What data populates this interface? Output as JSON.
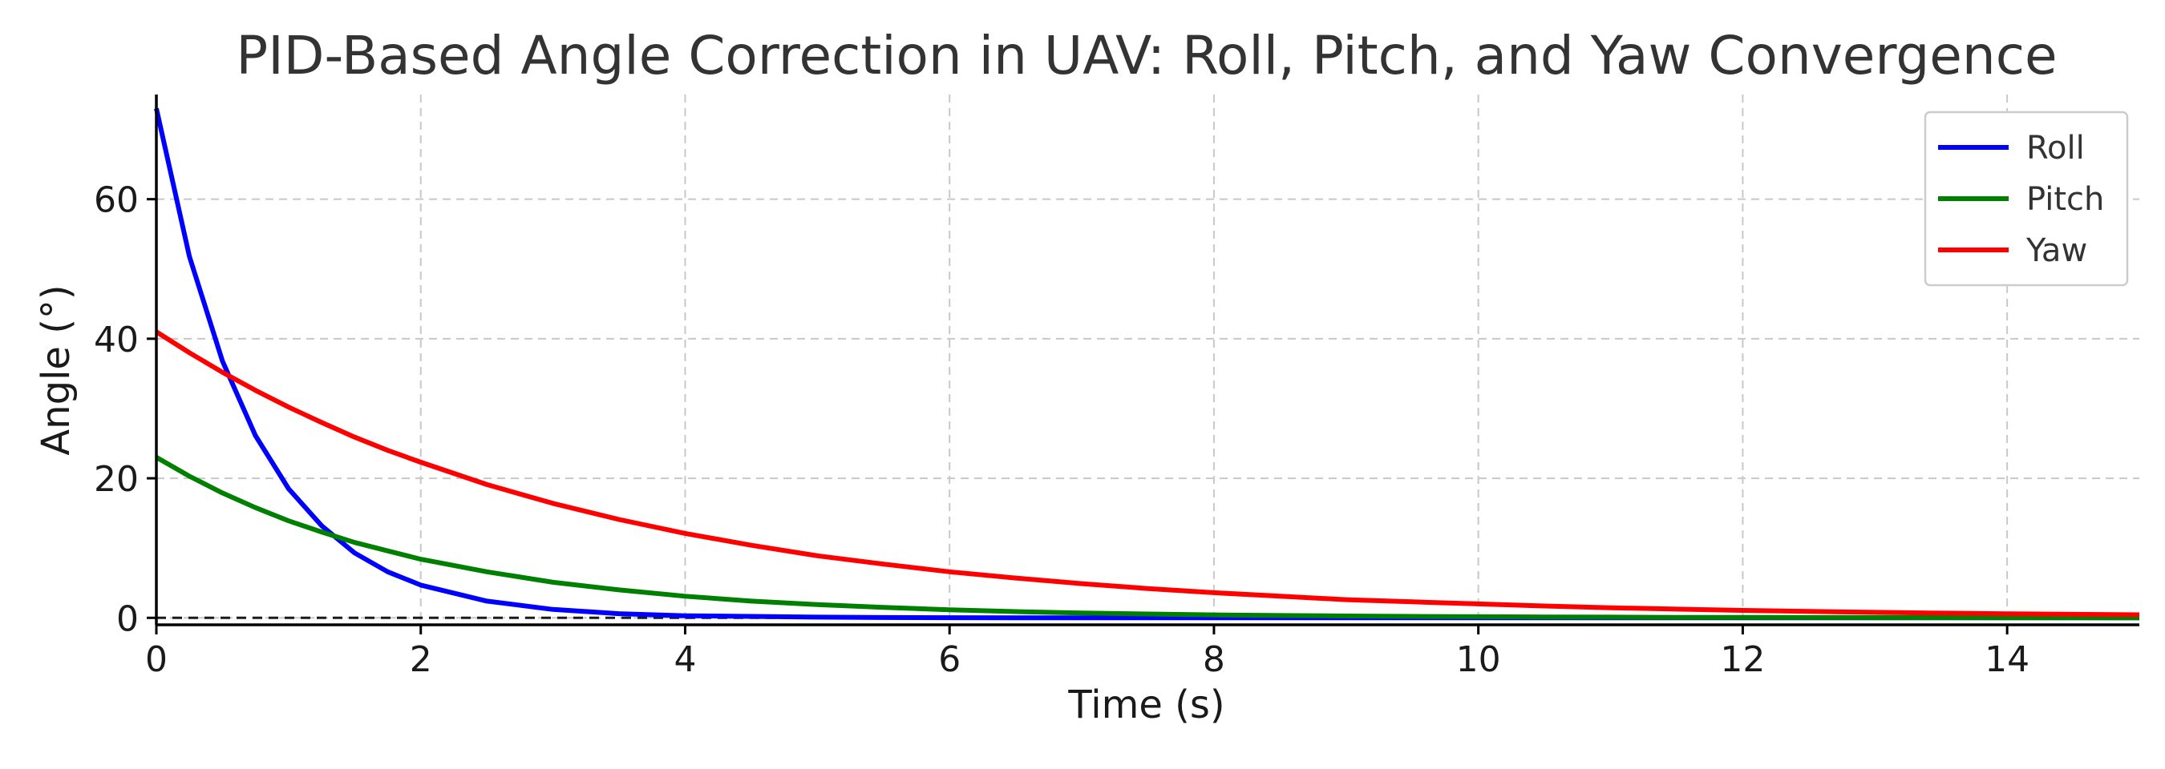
{
  "chart_data": {
    "type": "line",
    "title": "PID-Based Angle Correction in UAV: Roll, Pitch, and Yaw Convergence",
    "xlabel": "Time (s)",
    "ylabel": "Angle (°)",
    "xlim": [
      0,
      15
    ],
    "ylim": [
      -1,
      75
    ],
    "x_ticks": [
      0,
      2,
      4,
      6,
      8,
      10,
      12,
      14
    ],
    "y_ticks": [
      0,
      20,
      40,
      60
    ],
    "x_tick_labels": [
      "0",
      "2",
      "4",
      "6",
      "8",
      "10",
      "12",
      "14"
    ],
    "y_tick_labels": [
      "0",
      "20",
      "40",
      "60"
    ],
    "grid": true,
    "legend_position": "top-right",
    "reference_lines": [
      {
        "axis": "y",
        "value": 0,
        "style": "dashed",
        "color": "#333333"
      }
    ],
    "x": [
      0,
      0.25,
      0.5,
      0.75,
      1,
      1.25,
      1.5,
      1.75,
      2,
      2.5,
      3,
      3.5,
      4,
      4.5,
      5,
      5.5,
      6,
      6.5,
      7,
      7.5,
      8,
      8.5,
      9,
      9.5,
      10,
      10.5,
      11,
      11.5,
      12,
      12.5,
      13,
      13.5,
      14,
      14.5,
      15
    ],
    "series": [
      {
        "name": "Roll",
        "color": "#0000ff",
        "values": [
          73,
          51.8,
          36.8,
          26.1,
          18.5,
          13.2,
          9.3,
          6.6,
          4.7,
          2.4,
          1.2,
          0.6,
          0.3,
          0.2,
          0.1,
          0.05,
          0.02,
          0.01,
          0,
          0,
          0,
          0,
          0,
          0,
          0,
          0,
          0,
          0,
          0,
          0,
          0,
          0,
          0,
          0,
          0
        ]
      },
      {
        "name": "Pitch",
        "color": "#008000",
        "values": [
          23,
          20.3,
          17.9,
          15.8,
          13.9,
          12.3,
          10.8,
          9.6,
          8.4,
          6.6,
          5.1,
          4.0,
          3.1,
          2.4,
          1.9,
          1.5,
          1.15,
          0.9,
          0.7,
          0.55,
          0.42,
          0.33,
          0.26,
          0.2,
          0.16,
          0.12,
          0.1,
          0.07,
          0.06,
          0.05,
          0.04,
          0.03,
          0.02,
          0.02,
          0.01
        ]
      },
      {
        "name": "Yaw",
        "color": "#ff0000",
        "values": [
          41,
          38.0,
          35.2,
          32.6,
          30.2,
          28.0,
          25.9,
          24.0,
          22.3,
          19.1,
          16.4,
          14.1,
          12.1,
          10.4,
          8.9,
          7.7,
          6.6,
          5.7,
          4.9,
          4.2,
          3.6,
          3.1,
          2.6,
          2.3,
          2.0,
          1.7,
          1.45,
          1.25,
          1.07,
          0.92,
          0.79,
          0.68,
          0.58,
          0.5,
          0.43
        ]
      }
    ]
  }
}
